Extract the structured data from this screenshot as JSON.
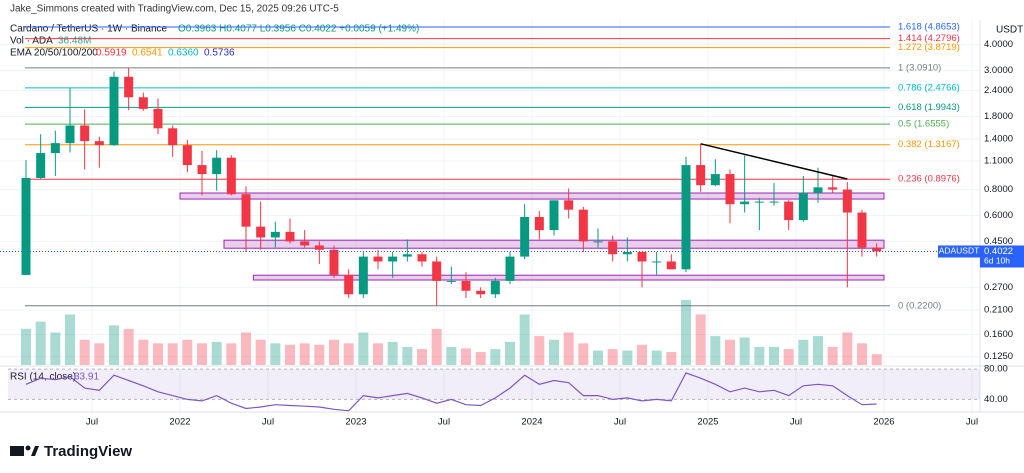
{
  "header": {
    "credit": "Jake_Simmons created with TradingView.com, Dec 15, 2025 09:26 UTC-5",
    "symbol": "Cardano / TetherUS · 1W · Binance",
    "ohlc": "O0.3963 H0.4077 L0.3956 C0.4022 +0.0059 (+1.49%)",
    "vol_label": "Vol · ADA",
    "vol_value": "36.48M",
    "ema_label": "EMA 20/50/100/200",
    "ema": [
      {
        "value": 0.5919,
        "color": "#f23645"
      },
      {
        "value": 0.6541,
        "color": "#ff9800"
      },
      {
        "value": 0.636,
        "label": "0.6360",
        "color": "#00bcd4"
      },
      {
        "value": 0.5736,
        "color": "#2a2ed6"
      }
    ],
    "rsi_label": "RSI (14, close)",
    "currency": "USDT",
    "symbol_tag": "ADAUSDT",
    "countdown": "6d 10h",
    "brand": "TradingView"
  },
  "chart_data": {
    "type": "candlestick",
    "x": [
      "2021-02",
      "2021-03",
      "2021-04",
      "2021-05",
      "2021-06",
      "2021-07",
      "2021-08",
      "2021-09",
      "2021-10",
      "2021-11",
      "2021-12",
      "2022-01",
      "2022-02",
      "2022-03",
      "2022-04",
      "2022-05",
      "2022-06",
      "2022-07",
      "2022-08",
      "2022-09",
      "2022-10",
      "2022-11",
      "2022-12",
      "2023-01",
      "2023-02",
      "2023-03",
      "2023-04",
      "2023-05",
      "2023-06",
      "2023-07",
      "2023-08",
      "2023-09",
      "2023-10",
      "2023-11",
      "2023-12",
      "2024-01",
      "2024-02",
      "2024-03",
      "2024-04",
      "2024-05",
      "2024-06",
      "2024-07",
      "2024-08",
      "2024-09",
      "2024-10",
      "2024-11",
      "2024-12",
      "2025-01",
      "2025-02",
      "2025-03",
      "2025-04",
      "2025-05",
      "2025-06",
      "2025-07",
      "2025-08",
      "2025-09",
      "2025-10",
      "2025-11",
      "2025-12"
    ],
    "open": [
      0.31,
      0.91,
      1.2,
      1.34,
      1.63,
      1.37,
      1.31,
      2.8,
      2.23,
      1.96,
      1.58,
      1.31,
      1.05,
      0.95,
      1.14,
      0.76,
      0.53,
      0.47,
      0.5,
      0.45,
      0.43,
      0.41,
      0.31,
      0.25,
      0.38,
      0.36,
      0.38,
      0.39,
      0.36,
      0.29,
      0.29,
      0.26,
      0.25,
      0.29,
      0.38,
      0.59,
      0.51,
      0.71,
      0.64,
      0.45,
      0.45,
      0.39,
      0.4,
      0.36,
      0.36,
      0.33,
      1.05,
      0.84,
      0.95,
      0.68,
      0.7,
      0.7,
      0.7,
      0.57,
      0.77,
      0.82,
      0.8,
      0.62,
      0.42
    ],
    "high": [
      1.11,
      1.48,
      1.54,
      2.47,
      1.95,
      1.44,
      2.97,
      3.1,
      2.35,
      2.2,
      1.63,
      1.39,
      1.23,
      1.24,
      1.17,
      0.83,
      0.7,
      0.56,
      0.58,
      0.51,
      0.45,
      0.43,
      0.33,
      0.4,
      0.41,
      0.4,
      0.46,
      0.4,
      0.38,
      0.34,
      0.32,
      0.27,
      0.3,
      0.4,
      0.68,
      0.63,
      0.71,
      0.81,
      0.66,
      0.52,
      0.48,
      0.47,
      0.4,
      0.4,
      0.39,
      1.15,
      1.33,
      1.12,
      1.0,
      1.17,
      0.73,
      0.86,
      0.71,
      0.93,
      1.02,
      0.93,
      0.87,
      0.64,
      0.44
    ],
    "low": [
      0.31,
      0.9,
      0.93,
      1.21,
      1.0,
      1.02,
      1.3,
      1.93,
      1.92,
      1.48,
      1.15,
      0.97,
      0.75,
      0.79,
      0.75,
      0.4,
      0.41,
      0.42,
      0.44,
      0.42,
      0.35,
      0.3,
      0.24,
      0.24,
      0.33,
      0.3,
      0.36,
      0.34,
      0.22,
      0.28,
      0.24,
      0.24,
      0.24,
      0.28,
      0.37,
      0.46,
      0.48,
      0.58,
      0.4,
      0.42,
      0.36,
      0.36,
      0.27,
      0.31,
      0.33,
      0.32,
      0.78,
      0.83,
      0.55,
      0.62,
      0.51,
      0.67,
      0.51,
      0.56,
      0.69,
      0.77,
      0.27,
      0.38,
      0.38
    ],
    "close": [
      0.91,
      1.2,
      1.34,
      1.63,
      1.37,
      1.31,
      2.8,
      2.23,
      1.96,
      1.58,
      1.31,
      1.05,
      0.95,
      1.14,
      0.76,
      0.53,
      0.47,
      0.5,
      0.45,
      0.43,
      0.41,
      0.31,
      0.25,
      0.38,
      0.36,
      0.38,
      0.39,
      0.36,
      0.29,
      0.29,
      0.26,
      0.25,
      0.29,
      0.38,
      0.59,
      0.51,
      0.71,
      0.64,
      0.45,
      0.45,
      0.39,
      0.4,
      0.36,
      0.36,
      0.33,
      1.05,
      0.84,
      0.95,
      0.68,
      0.7,
      0.7,
      0.7,
      0.57,
      0.77,
      0.82,
      0.8,
      0.62,
      0.42,
      0.4022
    ],
    "volume": [
      500,
      600,
      450,
      700,
      350,
      300,
      550,
      500,
      350,
      300,
      300,
      350,
      300,
      320,
      300,
      450,
      350,
      300,
      280,
      300,
      280,
      350,
      300,
      450,
      300,
      320,
      250,
      220,
      500,
      250,
      230,
      180,
      220,
      320,
      700,
      400,
      350,
      450,
      300,
      200,
      220,
      200,
      280,
      200,
      180,
      900,
      700,
      400,
      350,
      380,
      250,
      250,
      220,
      350,
      400,
      250,
      450,
      300,
      150
    ],
    "rsi": {
      "values": [
        60,
        68,
        66,
        70,
        55,
        52,
        72,
        65,
        58,
        50,
        45,
        40,
        38,
        45,
        35,
        28,
        30,
        33,
        32,
        31,
        30,
        27,
        25,
        45,
        42,
        45,
        48,
        42,
        35,
        40,
        33,
        32,
        42,
        55,
        72,
        60,
        65,
        62,
        45,
        45,
        40,
        42,
        38,
        40,
        38,
        75,
        68,
        60,
        50,
        55,
        50,
        52,
        45,
        58,
        60,
        58,
        45,
        33,
        33.91
      ],
      "ylim": [
        23.4,
        84.1
      ],
      "yticks": [
        {
          "value": 80,
          "label": "80.00"
        },
        {
          "value": 40,
          "label": "40.00"
        }
      ]
    },
    "up_color": "#089981",
    "down_color": "#f23645",
    "log_scale": true,
    "grid": true,
    "ylim": [
      0.114,
      5.26
    ],
    "yticks": [
      {
        "value": 4,
        "label": "4.0000"
      },
      {
        "value": 3,
        "label": "3.0000"
      },
      {
        "value": 2.4,
        "label": "2.4000"
      },
      {
        "value": 1.8,
        "label": "1.8000"
      },
      {
        "value": 1.4,
        "label": "1.4000"
      },
      {
        "value": 1.1,
        "label": "1.1000"
      },
      {
        "value": 0.8,
        "label": "0.8000"
      },
      {
        "value": 0.6,
        "label": "0.6000"
      },
      {
        "value": 0.45,
        "label": "0.4500"
      },
      {
        "value": 0.27,
        "label": "0.2700"
      },
      {
        "value": 0.21,
        "label": "0.2100"
      },
      {
        "value": 0.16,
        "label": "0.1600"
      },
      {
        "value": 0.125,
        "label": "0.1250"
      }
    ],
    "xticks": [
      {
        "value": "2021-07",
        "label": "Jul"
      },
      {
        "value": "2022-01",
        "label": "2022"
      },
      {
        "value": "2022-07",
        "label": "Jul"
      },
      {
        "value": "2023-01",
        "label": "2023"
      },
      {
        "value": "2023-07",
        "label": "Jul"
      },
      {
        "value": "2024-01",
        "label": "2024"
      },
      {
        "value": "2024-07",
        "label": "Jul"
      },
      {
        "value": "2025-01",
        "label": "2025"
      },
      {
        "value": "2025-07",
        "label": "Jul"
      },
      {
        "value": "2026-01",
        "label": "2026"
      },
      {
        "value": "2026-07",
        "label": "Jul"
      }
    ],
    "fib_levels": [
      {
        "value": 4.8653,
        "label": "1.618 (4.8653)",
        "color": "#2962ff"
      },
      {
        "value": 4.2796,
        "label": "1.414 (4.2796)",
        "color": "#f23645"
      },
      {
        "value": 3.8719,
        "label": "1.272 (3.8719)",
        "color": "#ff9800"
      },
      {
        "value": 3.091,
        "label": "1 (3.0910)",
        "color": "#787b86"
      },
      {
        "value": 2.4766,
        "label": "0.786 (2.4766)",
        "color": "#00bcd4"
      },
      {
        "value": 1.9943,
        "label": "0.618 (1.9943)",
        "color": "#089981"
      },
      {
        "value": 1.6555,
        "label": "0.5 (1.6555)",
        "color": "#4caf50"
      },
      {
        "value": 1.3167,
        "label": "0.382 (1.3167)",
        "color": "#ff9800"
      },
      {
        "value": 0.8976,
        "label": "0.236 (0.8976)",
        "color": "#f23645"
      },
      {
        "value": 0.22,
        "label": "0 (0.2200)",
        "color": "#787b86"
      }
    ],
    "zones": [
      {
        "start": "2022-01",
        "end": "2026-01",
        "low": 0.72,
        "high": 0.77
      },
      {
        "start": "2022-04",
        "end": "2026-01",
        "low": 0.417,
        "high": 0.456
      },
      {
        "start": "2022-06",
        "end": "2026-01",
        "low": 0.293,
        "high": 0.309
      }
    ],
    "trendline": {
      "x": [
        "2024-12",
        "2025-10"
      ],
      "y": [
        1.33,
        0.9
      ]
    }
  }
}
